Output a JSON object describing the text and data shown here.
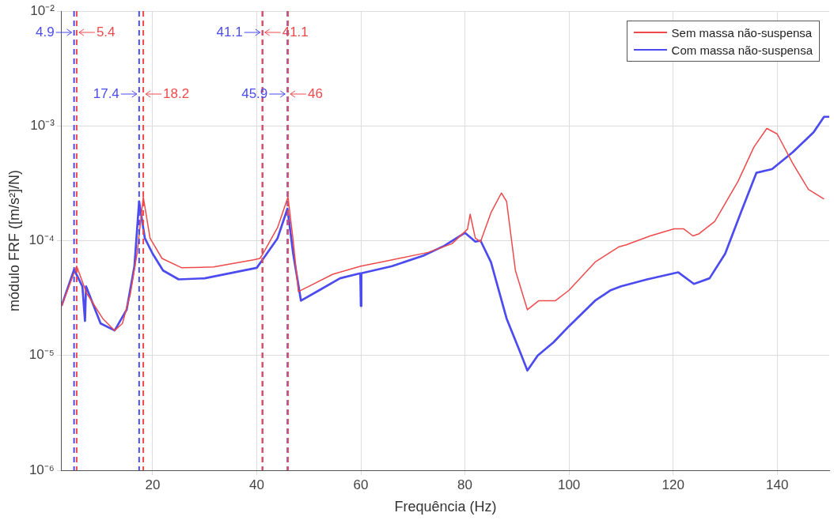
{
  "chart_data": {
    "type": "line",
    "xlabel": "Frequência (Hz)",
    "ylabel": "módulo FRF ([m/s²]/N)",
    "xlim": [
      2.5,
      150
    ],
    "xticks": [
      20,
      40,
      60,
      80,
      100,
      120,
      140
    ],
    "ylim": [
      1e-06,
      0.01
    ],
    "yticks": [
      {
        "value": 1e-06,
        "label": "10⁻⁶"
      },
      {
        "value": 1e-05,
        "label": "10⁻⁵"
      },
      {
        "value": 0.0001,
        "label": "10⁻⁴"
      },
      {
        "value": 0.001,
        "label": "10⁻³"
      },
      {
        "value": 0.01,
        "label": "10⁻²"
      }
    ],
    "log": "y",
    "grid": true,
    "legend": "top right",
    "marker": "none",
    "line_style": "solid",
    "series": [
      {
        "name": "Sem massa não-suspensa",
        "color": "#ee4a4c",
        "x": [
          2.5,
          5.4,
          7.3,
          10.4,
          12.7,
          14.2,
          15.7,
          17,
          18.2,
          19.5,
          21.8,
          25.6,
          31.7,
          39.4,
          40.6,
          41.2,
          44,
          46,
          47,
          48,
          50,
          54.6,
          60,
          65.3,
          72.9,
          77.5,
          80.5,
          81,
          82,
          83,
          85,
          87,
          88,
          89.7,
          92,
          94.2,
          97.4,
          100,
          105,
          109.5,
          111,
          115.6,
          120.2,
          122,
          123.8,
          125,
          128,
          132.5,
          135.5,
          138,
          140,
          143,
          146,
          149
        ],
        "values": [
          2.7e-05,
          6e-05,
          3.5e-05,
          2.1e-05,
          1.65e-05,
          1.9e-05,
          3.4e-05,
          7.7e-05,
          0.00024,
          0.000105,
          7e-05,
          5.8e-05,
          5.9e-05,
          6.8e-05,
          7e-05,
          7.7e-05,
          0.00013,
          0.00024,
          0.0001,
          3.6e-05,
          4e-05,
          5.1e-05,
          6e-05,
          6.7e-05,
          7.9e-05,
          9.4e-05,
          0.000126,
          0.00017,
          0.000105,
          9.8e-05,
          0.000175,
          0.00026,
          0.00022,
          5.5e-05,
          2.5e-05,
          3e-05,
          3e-05,
          3.7e-05,
          6.5e-05,
          8.8e-05,
          9.2e-05,
          0.00011,
          0.000127,
          0.000127,
          0.00011,
          0.000115,
          0.000147,
          0.00033,
          0.00065,
          0.00095,
          0.00085,
          0.00047,
          0.00028,
          0.00023
        ]
      },
      {
        "name": "Com massa não-suspensa",
        "color": "#4b4bef",
        "x": [
          2.5,
          4.9,
          6.5,
          7,
          7.2,
          10,
          12.7,
          15,
          16.5,
          17.4,
          18.5,
          20,
          22,
          25,
          30,
          40,
          41.1,
          44,
          45.9,
          47,
          48.5,
          52,
          56,
          59.9,
          60,
          60.1,
          66,
          72,
          76,
          80,
          82,
          83,
          85,
          88,
          90.5,
          92,
          94,
          97,
          100,
          105,
          108,
          110,
          115,
          121,
          124,
          127,
          130,
          133,
          136,
          139,
          143,
          147,
          149,
          150
        ],
        "values": [
          2.7e-05,
          5.6e-05,
          4e-05,
          2e-05,
          4e-05,
          1.9e-05,
          1.65e-05,
          2.5e-05,
          6e-05,
          0.00022,
          0.000105,
          7.7e-05,
          5.5e-05,
          4.6e-05,
          4.7e-05,
          5.8e-05,
          6.8e-05,
          0.000105,
          0.00019,
          7.7e-05,
          3e-05,
          3.7e-05,
          4.7e-05,
          5.2e-05,
          2.7e-05,
          5.2e-05,
          6e-05,
          7.4e-05,
          9e-05,
          0.000117,
          9.8e-05,
          0.0001,
          6.5e-05,
          2.1e-05,
          1.1e-05,
          7.4e-06,
          1e-05,
          1.3e-05,
          1.8e-05,
          3e-05,
          3.7e-05,
          4e-05,
          4.6e-05,
          5.3e-05,
          4.2e-05,
          4.7e-05,
          7.7e-05,
          0.000175,
          0.00039,
          0.00042,
          0.00059,
          0.00088,
          0.0012,
          0.0012
        ]
      }
    ],
    "ref_lines": [
      {
        "axis": "x",
        "value": 4.9,
        "label": "4.9",
        "color": "#4b4bef",
        "line_style": "dashed"
      },
      {
        "axis": "x",
        "value": 5.4,
        "label": "5.4",
        "color": "#ee4a4c",
        "line_style": "dashed"
      },
      {
        "axis": "x",
        "value": 17.4,
        "label": "17.4",
        "color": "#4b4bef",
        "line_style": "dashed"
      },
      {
        "axis": "x",
        "value": 18.2,
        "label": "18.2",
        "color": "#ee4a4c",
        "line_style": "dashed"
      },
      {
        "axis": "x",
        "value": 41.1,
        "label": "41.1",
        "color": "#4b4bef",
        "line_style": "dashed"
      },
      {
        "axis": "x",
        "value": 41.1,
        "label": "41.1",
        "color": "#ee4a4c",
        "line_style": "dashed"
      },
      {
        "axis": "x",
        "value": 45.9,
        "label": "45.9",
        "color": "#4b4bef",
        "line_style": "dashed"
      },
      {
        "axis": "x",
        "value": 46,
        "label": "46",
        "color": "#ee4a4c",
        "line_style": "dashed"
      }
    ]
  }
}
